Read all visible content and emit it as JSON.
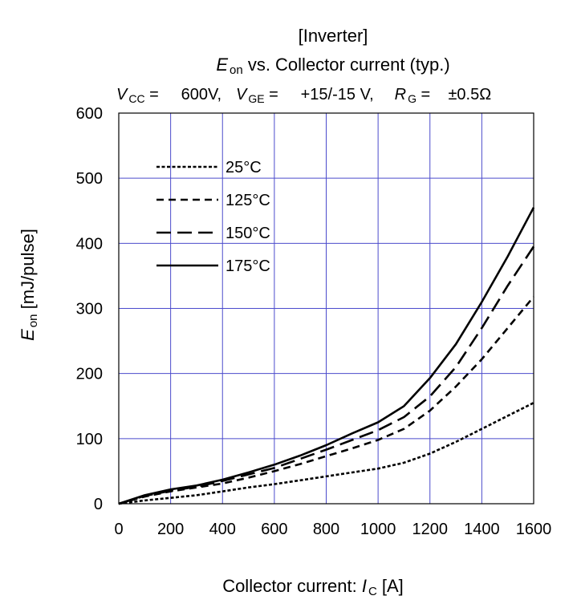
{
  "chart_data": {
    "type": "line",
    "title": "[Inverter]",
    "subtitle": {
      "e_sym": "E",
      "e_sub": "on",
      "rest": " vs. Collector current  (typ.)"
    },
    "conditions": {
      "vcc_sym": "V",
      "vcc_sub": "CC",
      "vcc_val": " =     600V,",
      "vge_sym": "V",
      "vge_sub": "GE",
      "vge_val": " =     +15/-15 V,",
      "rg_sym": "R",
      "rg_sub": "G",
      "rg_val": " =    ±0.5Ω"
    },
    "xlabel": {
      "text": "Collector current: ",
      "sym": "I",
      "sub": "C",
      "unit": " [A]"
    },
    "ylabel": {
      "sym": "E",
      "sub": "on",
      "unit": " [mJ/pulse]"
    },
    "xlim": [
      0,
      1600
    ],
    "ylim": [
      0,
      600
    ],
    "x_ticks": [
      0,
      200,
      400,
      600,
      800,
      1000,
      1200,
      1400,
      1600
    ],
    "y_ticks": [
      0,
      100,
      200,
      300,
      400,
      500,
      600
    ],
    "grid": true,
    "legend_position": "top-left",
    "line_color": "#000000",
    "grid_color": "#4b4bcc",
    "series": [
      {
        "name": "25°C",
        "dash": "dotted",
        "x": [
          0,
          100,
          200,
          300,
          400,
          500,
          600,
          700,
          800,
          900,
          1000,
          1100,
          1200,
          1300,
          1400,
          1500,
          1600
        ],
        "y": [
          0,
          5,
          9,
          13,
          19,
          25,
          30,
          36,
          42,
          48,
          54,
          63,
          77,
          95,
          115,
          135,
          155
        ]
      },
      {
        "name": "125°C",
        "dash": "short-dash",
        "x": [
          0,
          100,
          200,
          300,
          400,
          500,
          600,
          700,
          800,
          900,
          1000,
          1100,
          1200,
          1300,
          1400,
          1500,
          1600
        ],
        "y": [
          0,
          11,
          19,
          25,
          31,
          40,
          50,
          61,
          73,
          85,
          98,
          115,
          143,
          180,
          222,
          270,
          318
        ]
      },
      {
        "name": "150°C",
        "dash": "long-dash",
        "x": [
          0,
          100,
          200,
          300,
          400,
          500,
          600,
          700,
          800,
          900,
          1000,
          1100,
          1200,
          1300,
          1400,
          1500,
          1600
        ],
        "y": [
          0,
          12,
          20,
          26,
          35,
          45,
          55,
          69,
          83,
          98,
          113,
          133,
          165,
          210,
          270,
          335,
          395
        ]
      },
      {
        "name": "175°C",
        "dash": "solid",
        "x": [
          0,
          100,
          200,
          300,
          400,
          500,
          600,
          700,
          800,
          900,
          1000,
          1100,
          1200,
          1300,
          1400,
          1500,
          1600
        ],
        "y": [
          0,
          13,
          22,
          28,
          37,
          48,
          60,
          74,
          90,
          108,
          125,
          150,
          193,
          245,
          310,
          380,
          455
        ]
      }
    ]
  }
}
